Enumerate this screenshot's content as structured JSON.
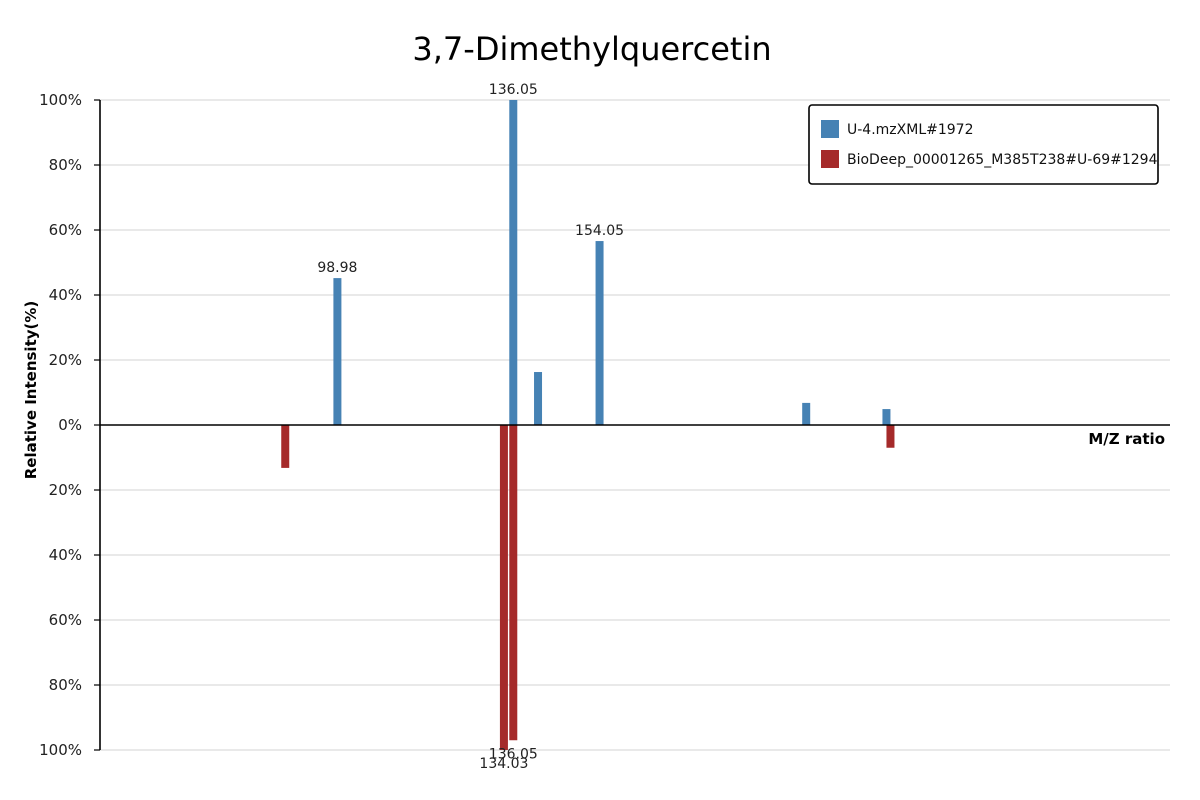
{
  "chart_data": {
    "type": "bar",
    "title": "3,7-Dimethylquercetin",
    "xlabel": "M/Z ratio",
    "ylabel": "Relative Intensity(%)",
    "ylim": [
      -100,
      100
    ],
    "xlim": [
      40,
      200
    ],
    "y_ticks": [
      {
        "value": 100,
        "label": "100%"
      },
      {
        "value": 80,
        "label": "80%"
      },
      {
        "value": 60,
        "label": "60%"
      },
      {
        "value": 40,
        "label": "40%"
      },
      {
        "value": 20,
        "label": "20%"
      },
      {
        "value": 0,
        "label": "0%"
      },
      {
        "value": -20,
        "label": "20%"
      },
      {
        "value": -40,
        "label": "40%"
      },
      {
        "value": -60,
        "label": "60%"
      },
      {
        "value": -80,
        "label": "80%"
      },
      {
        "value": -100,
        "label": "100%"
      }
    ],
    "grid": true,
    "legend_position": "top-right",
    "series": [
      {
        "name": "U-4.mzXML#1972",
        "color": "#4682b4",
        "peaks": [
          {
            "mz": 75.5,
            "intensity": 45.2,
            "label": "98.98"
          },
          {
            "mz": 101.8,
            "intensity": 100,
            "label": "136.05"
          },
          {
            "mz": 105.5,
            "intensity": 16.3,
            "label": ""
          },
          {
            "mz": 114.7,
            "intensity": 56.6,
            "label": "154.05"
          },
          {
            "mz": 145.6,
            "intensity": 6.8,
            "label": ""
          },
          {
            "mz": 157.6,
            "intensity": 4.9,
            "label": ""
          }
        ]
      },
      {
        "name": "BioDeep_00001265_M385T238#U-69#1294",
        "color": "#a52a2a",
        "peaks": [
          {
            "mz": 67.7,
            "intensity": -13.2,
            "label": ""
          },
          {
            "mz": 100.4,
            "intensity": -100,
            "label": "134.03"
          },
          {
            "mz": 101.8,
            "intensity": -97.0,
            "label": "136.05"
          },
          {
            "mz": 158.2,
            "intensity": -7.0,
            "label": ""
          }
        ]
      }
    ]
  }
}
